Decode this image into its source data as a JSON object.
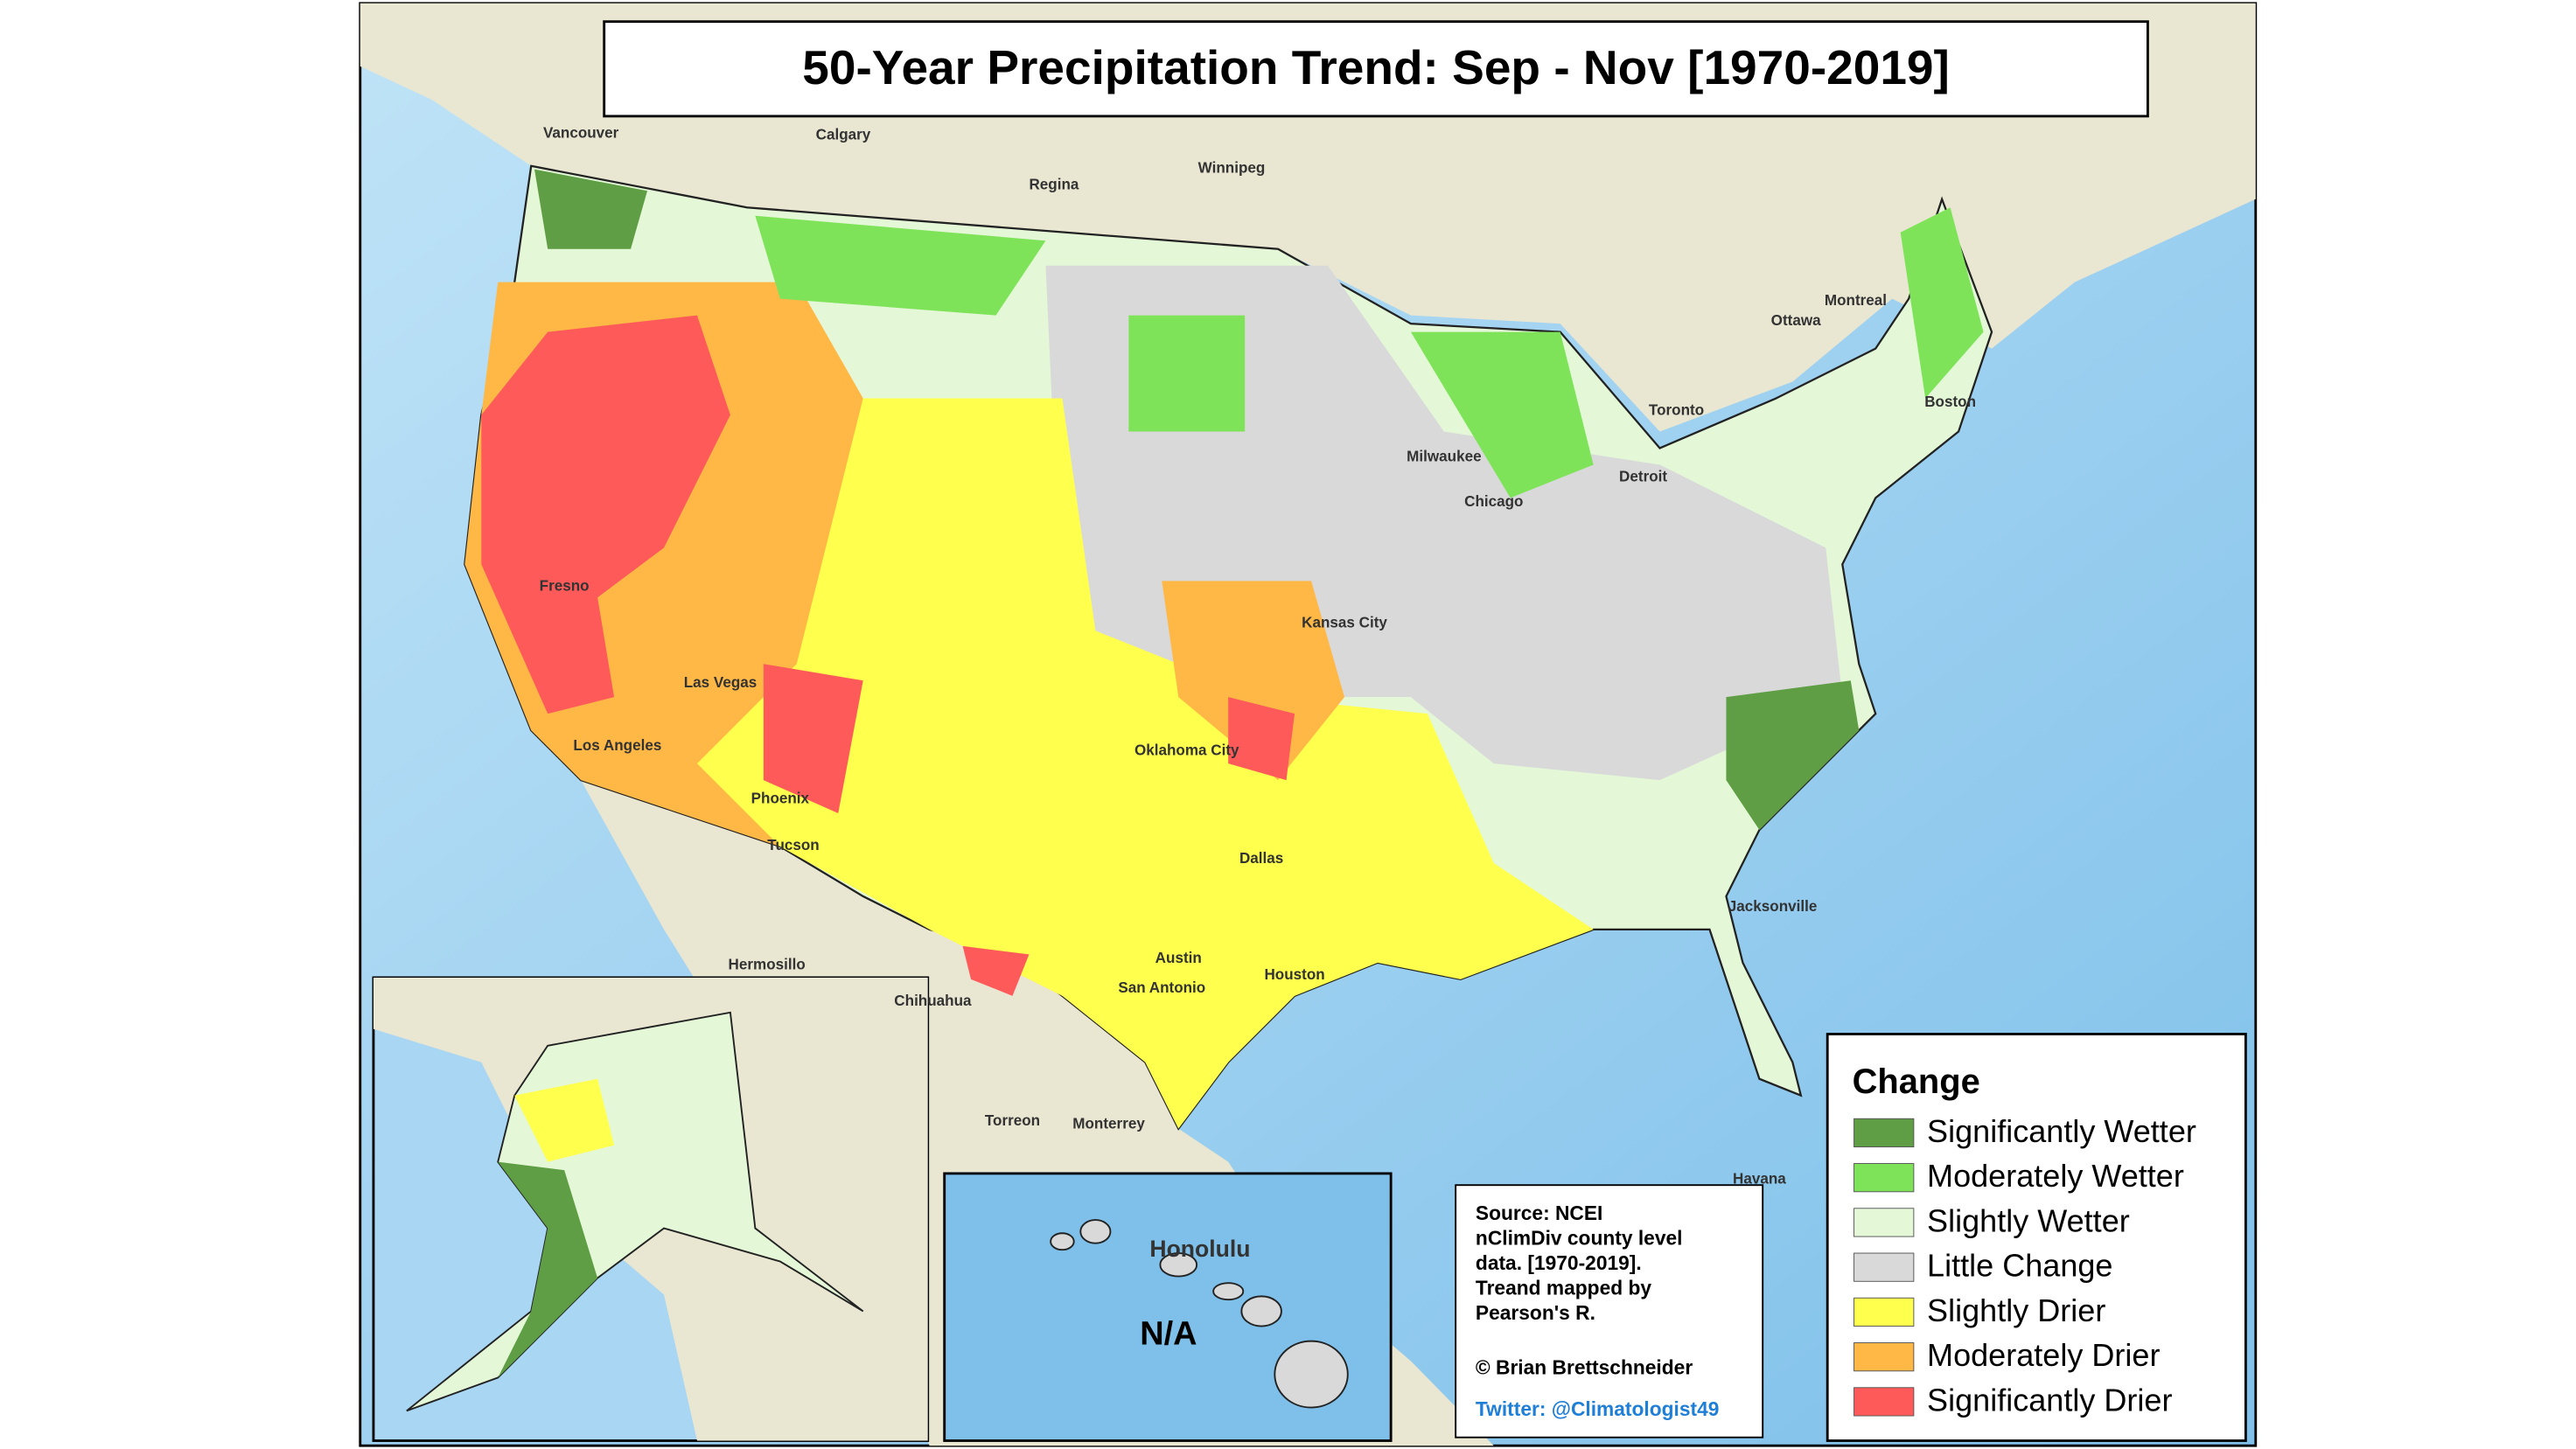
{
  "title": "50-Year Precipitation Trend: Sep - Nov [1970-2019]",
  "legend": {
    "title": "Change",
    "items": [
      {
        "label": "Significantly Wetter",
        "color": "#5f9e45"
      },
      {
        "label": "Moderately Wetter",
        "color": "#7fe35a"
      },
      {
        "label": "Slightly Wetter",
        "color": "#e4f8d8"
      },
      {
        "label": "Little Change",
        "color": "#d9d9d9"
      },
      {
        "label": "Slightly Drier",
        "color": "#ffff4d"
      },
      {
        "label": "Moderately Drier",
        "color": "#ffb845"
      },
      {
        "label": "Significantly Drier",
        "color": "#ff5a5a"
      }
    ]
  },
  "source": {
    "lines": [
      "Source: NCEI",
      "nClimDiv county level",
      "data. [1970-2019].",
      "Treand mapped by",
      "Pearson's R."
    ],
    "credit": "© Brian Brettschneider",
    "twitter": "Twitter: @Climatologist49"
  },
  "hawaii_note": "N/A",
  "places": [
    "Calgary",
    "Regina",
    "Winnipeg",
    "Vancouver",
    "Ottawa",
    "Montreal",
    "Toronto",
    "Boston",
    "Chicago",
    "Milwaukee",
    "Detroit",
    "Fresno",
    "Los Angeles",
    "Las Vegas",
    "Phoenix",
    "Tucson",
    "Kansas City",
    "Oklahoma City",
    "Dallas",
    "Austin",
    "San Antonio",
    "Houston",
    "Jacksonville",
    "Hermosillo",
    "Chihuahua",
    "Torreon",
    "Monterrey",
    "Havana",
    "Honolulu"
  ]
}
